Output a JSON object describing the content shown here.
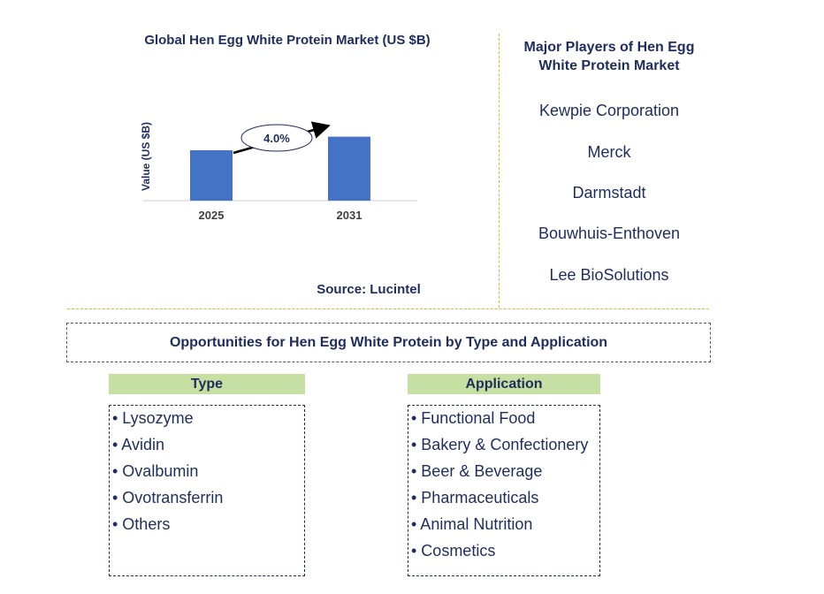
{
  "chart_data": {
    "type": "bar",
    "title": "Global Hen Egg White Protein Market (US $B)",
    "ylabel": "Value (US $B)",
    "xlabel": "",
    "categories": [
      "2025",
      "2031"
    ],
    "values": [
      1.0,
      1.27
    ],
    "cagr_label": "4.0%",
    "bar_color": "#4472c4",
    "source": "Source: Lucintel"
  },
  "players": {
    "title": "Major Players of Hen Egg White Protein Market",
    "items": [
      "Kewpie Corporation",
      "Merck",
      "Darmstadt",
      "Bouwhuis-Enthoven",
      "Lee BioSolutions"
    ]
  },
  "opportunities": {
    "title": "Opportunities for Hen Egg White Protein by Type and Application",
    "type": {
      "header": "Type",
      "items": [
        "• Lysozyme",
        "• Avidin",
        "• Ovalbumin",
        "• Ovotransferrin",
        "• Others"
      ]
    },
    "application": {
      "header": "Application",
      "items": [
        "• Functional Food",
        "• Bakery & Confectionery",
        "• Beer & Beverage",
        "• Pharmaceuticals",
        "• Animal Nutrition",
        "• Cosmetics"
      ]
    }
  }
}
